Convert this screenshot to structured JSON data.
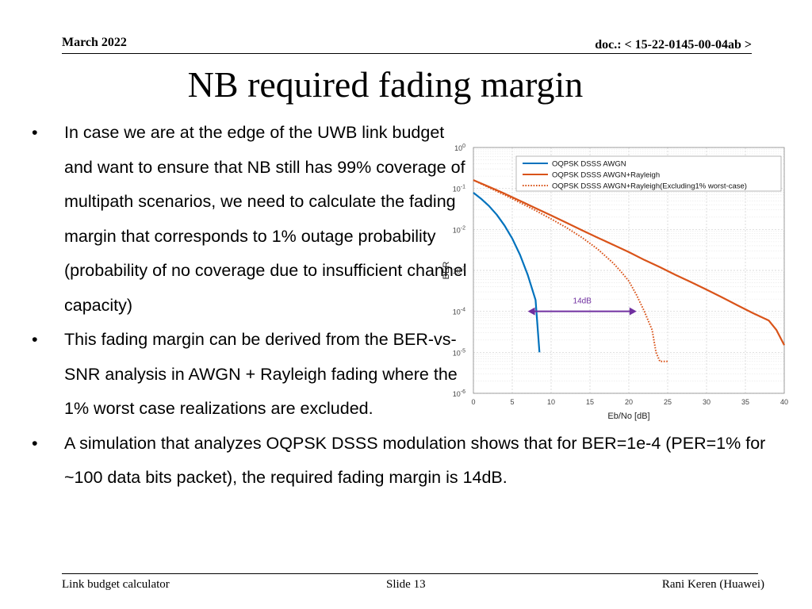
{
  "header": {
    "date": "March 2022",
    "doc": "doc.: < 15-22-0145-00-04ab >"
  },
  "title": "NB required fading margin",
  "bullets": [
    {
      "marker": "•",
      "text": "In case we are at the edge of the UWB link budget and want to ensure that NB still has 99% coverage of multipath scenarios, we need to calculate the fading margin that corresponds to 1% outage probability (probability of no coverage due to insufficient channel capacity)"
    },
    {
      "marker": "•",
      "text": "This fading margin can be derived from the BER-vs-SNR analysis in AWGN + Rayleigh fading where the 1% worst case realizations are excluded."
    },
    {
      "marker": "•",
      "text": "A simulation that analyzes OQPSK DSSS modulation shows that for BER=1e-4 (PER=1% for ~100 data bits packet), the required fading margin is 14dB."
    }
  ],
  "footer": {
    "left": "Link budget calculator",
    "center": "Slide 13",
    "right": "Rani Keren (Huawei)"
  },
  "chart_data": {
    "type": "line",
    "xlabel": "Eb/No [dB]",
    "ylabel": "BER",
    "xlim": [
      0,
      40
    ],
    "ylim": [
      1e-06,
      1
    ],
    "yscale": "log",
    "grid": true,
    "legend_position": "top-right",
    "x_ticks": [
      "0",
      "5",
      "10",
      "15",
      "20",
      "25",
      "30",
      "35",
      "40"
    ],
    "y_ticks": [
      {
        "value": 1,
        "base": "10",
        "exp": "0"
      },
      {
        "value": 0.1,
        "base": "10",
        "exp": "-1"
      },
      {
        "value": 0.01,
        "base": "10",
        "exp": "-2"
      },
      {
        "value": 0.001,
        "base": "10",
        "exp": "-3"
      },
      {
        "value": 0.0001,
        "base": "10",
        "exp": "-4"
      },
      {
        "value": 1e-05,
        "base": "10",
        "exp": "-5"
      },
      {
        "value": 1e-06,
        "base": "10",
        "exp": "-6"
      }
    ],
    "series": [
      {
        "name": "OQPSK DSSS AWGN",
        "color": "#0072bd",
        "style": "solid",
        "x": [
          0,
          1,
          2,
          3,
          4,
          5,
          6,
          7,
          8,
          8.5
        ],
        "y": [
          0.079,
          0.056,
          0.0375,
          0.0229,
          0.0125,
          0.006,
          0.0024,
          0.00077,
          0.00019,
          1e-05
        ]
      },
      {
        "name": "OQPSK DSSS AWGN+Rayleigh",
        "color": "#d95319",
        "style": "solid",
        "x": [
          0,
          2,
          4,
          6,
          8,
          10,
          12,
          14,
          16,
          18,
          20,
          22,
          24,
          26,
          28,
          30,
          32,
          34,
          36,
          38,
          39,
          40
        ],
        "y": [
          0.16,
          0.11,
          0.075,
          0.05,
          0.033,
          0.022,
          0.0145,
          0.0095,
          0.0063,
          0.0042,
          0.0028,
          0.0018,
          0.0012,
          0.00078,
          0.00052,
          0.00034,
          0.00022,
          0.00014,
          9e-05,
          6e-05,
          3.5e-05,
          1.5e-05
        ]
      },
      {
        "name": "OQPSK DSSS AWGN+Rayleigh(Excluding1% worst-case)",
        "color": "#d95319",
        "style": "dotted",
        "x": [
          0,
          2,
          4,
          6,
          8,
          10,
          12,
          14,
          16,
          18,
          19,
          20,
          21,
          22,
          23,
          23.5,
          24,
          25
        ],
        "y": [
          0.16,
          0.105,
          0.07,
          0.045,
          0.029,
          0.018,
          0.011,
          0.0063,
          0.0033,
          0.0015,
          0.00093,
          0.00055,
          0.00025,
          0.0001,
          3.5e-05,
          1e-05,
          6e-06,
          6e-06
        ]
      }
    ],
    "annotation": {
      "label": "14dB",
      "x_start": 7,
      "x_end": 21,
      "y": 0.0001,
      "color": "#7030a0"
    }
  }
}
